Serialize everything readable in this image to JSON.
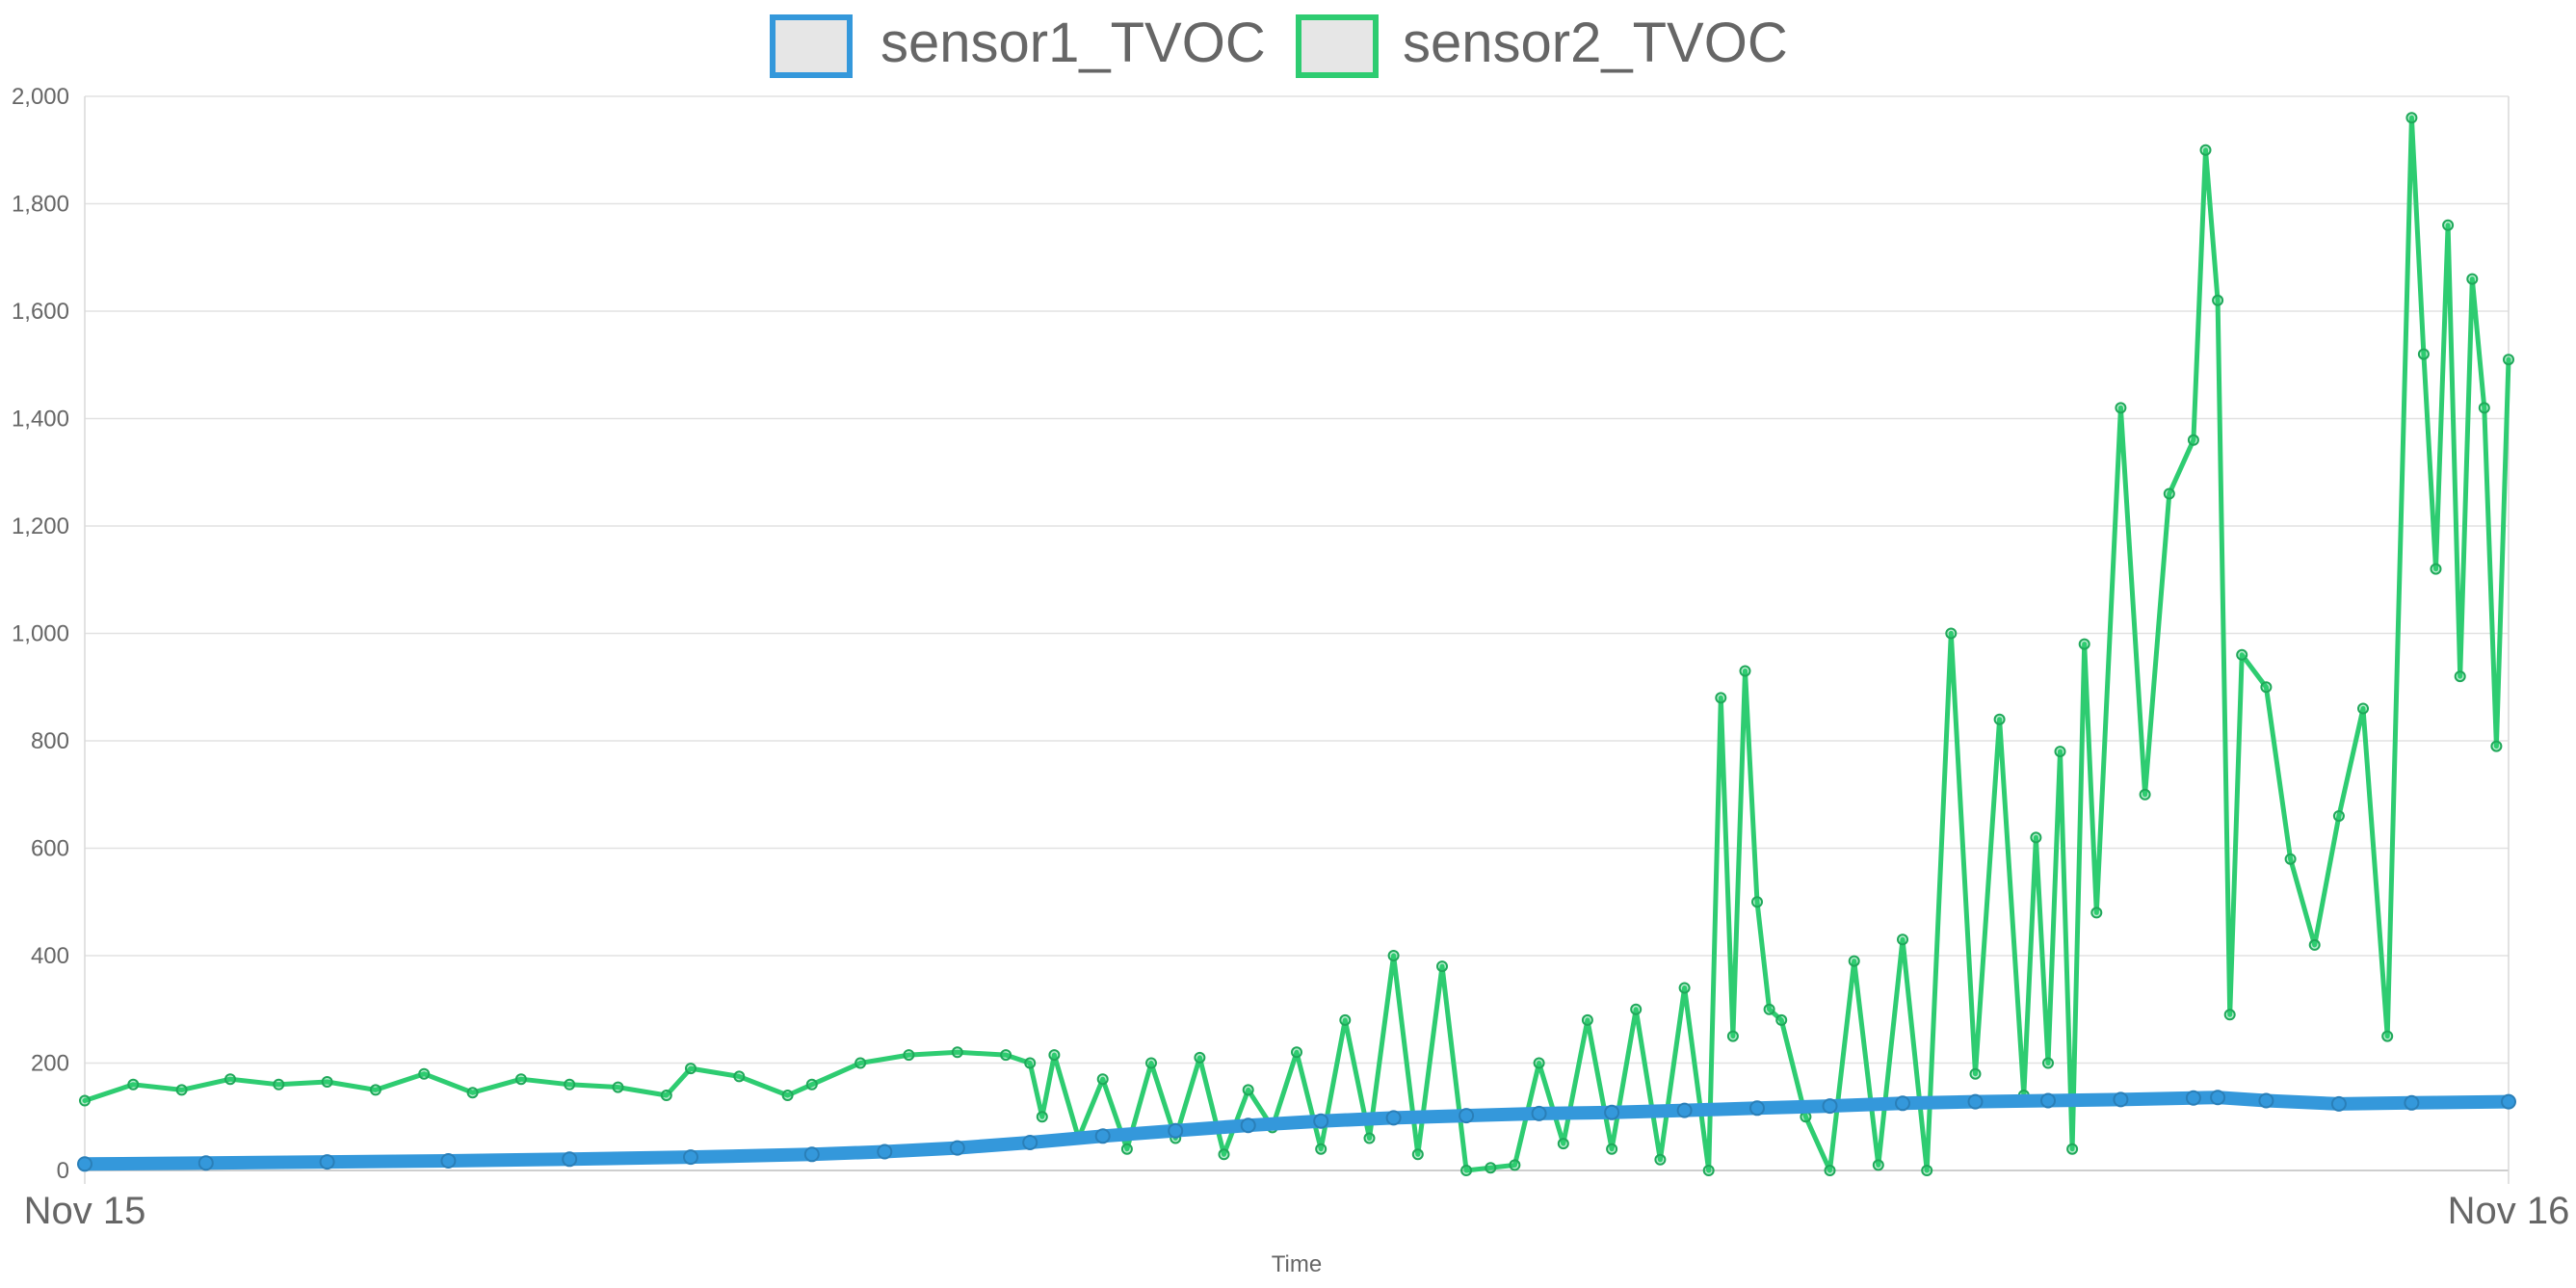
{
  "chart_data": {
    "type": "line",
    "title": "",
    "xlabel": "Time",
    "ylabel": "",
    "x_axis": {
      "type": "time",
      "range": [
        "Nov 15",
        "Nov 16"
      ],
      "ticks": [
        "Nov 15",
        "Nov 16"
      ]
    },
    "ylim": [
      0,
      2000
    ],
    "y_ticks": [
      "0",
      "200",
      "400",
      "600",
      "800",
      "1,000",
      "1,200",
      "1,400",
      "1,600",
      "1,800",
      "2,000"
    ],
    "y_tick_values": [
      0,
      200,
      400,
      600,
      800,
      1000,
      1200,
      1400,
      1600,
      1800,
      2000
    ],
    "grid": true,
    "legend": "top-center",
    "series": [
      {
        "name": "sensor1_TVOC",
        "color": "#3498db",
        "x": [
          0,
          0.05,
          0.1,
          0.15,
          0.2,
          0.25,
          0.3,
          0.33,
          0.36,
          0.39,
          0.42,
          0.45,
          0.48,
          0.51,
          0.54,
          0.57,
          0.6,
          0.63,
          0.66,
          0.69,
          0.72,
          0.75,
          0.78,
          0.81,
          0.84,
          0.87,
          0.88,
          0.9,
          0.93,
          0.96,
          1.0
        ],
        "values": [
          12,
          14,
          16,
          18,
          21,
          25,
          30,
          35,
          42,
          52,
          64,
          74,
          84,
          92,
          98,
          102,
          106,
          108,
          112,
          116,
          120,
          125,
          128,
          130,
          132,
          135,
          136,
          130,
          124,
          126,
          128
        ]
      },
      {
        "name": "sensor2_TVOC",
        "color": "#2ecc71",
        "x": [
          0,
          0.02,
          0.04,
          0.06,
          0.08,
          0.1,
          0.12,
          0.14,
          0.16,
          0.18,
          0.2,
          0.22,
          0.24,
          0.25,
          0.27,
          0.29,
          0.3,
          0.32,
          0.34,
          0.36,
          0.38,
          0.39,
          0.395,
          0.4,
          0.41,
          0.42,
          0.43,
          0.44,
          0.45,
          0.46,
          0.47,
          0.48,
          0.49,
          0.5,
          0.51,
          0.52,
          0.53,
          0.54,
          0.55,
          0.56,
          0.57,
          0.58,
          0.59,
          0.6,
          0.61,
          0.62,
          0.63,
          0.64,
          0.65,
          0.66,
          0.67,
          0.675,
          0.68,
          0.685,
          0.69,
          0.695,
          0.7,
          0.71,
          0.72,
          0.73,
          0.74,
          0.75,
          0.76,
          0.77,
          0.78,
          0.79,
          0.8,
          0.805,
          0.81,
          0.815,
          0.82,
          0.825,
          0.83,
          0.84,
          0.85,
          0.86,
          0.87,
          0.875,
          0.88,
          0.885,
          0.89,
          0.9,
          0.91,
          0.92,
          0.93,
          0.94,
          0.95,
          0.96,
          0.965,
          0.97,
          0.975,
          0.98,
          0.985,
          0.99,
          0.995,
          1.0
        ],
        "values": [
          130,
          160,
          150,
          170,
          160,
          165,
          150,
          180,
          145,
          170,
          160,
          155,
          140,
          190,
          175,
          140,
          160,
          200,
          215,
          220,
          215,
          200,
          100,
          215,
          60,
          170,
          40,
          200,
          60,
          210,
          30,
          150,
          80,
          220,
          40,
          280,
          60,
          400,
          30,
          380,
          0,
          5,
          10,
          200,
          50,
          280,
          40,
          300,
          20,
          340,
          0,
          880,
          250,
          930,
          500,
          300,
          280,
          100,
          0,
          390,
          10,
          430,
          0,
          1000,
          180,
          840,
          140,
          620,
          200,
          780,
          40,
          980,
          480,
          1420,
          700,
          1260,
          1360,
          1900,
          1620,
          290,
          960,
          900,
          580,
          420,
          660,
          860,
          250,
          1960,
          1520,
          1120,
          1760,
          920,
          1660,
          1420,
          790,
          1510
        ]
      }
    ]
  }
}
